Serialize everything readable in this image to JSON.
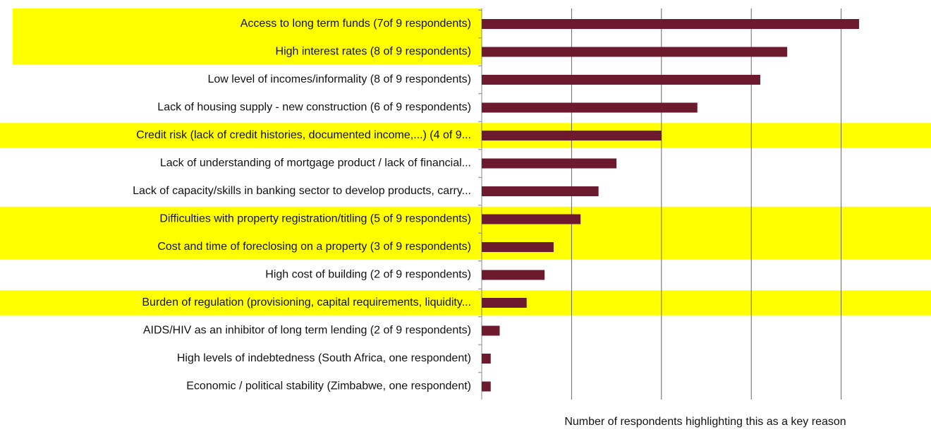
{
  "chart_data": {
    "type": "barh",
    "categories": [
      "Access to long term funds (7of 9 respondents)",
      "High interest rates (8 of 9 respondents)",
      "Low level of incomes/informality (8 of 9 respondents)",
      "Lack of housing supply - new  construction (6 of 9 respondents)",
      "Credit risk (lack of credit histories, documented income,...) (4 of 9...",
      "Lack of understanding of mortgage product / lack of financial...",
      "Lack of capacity/skills in banking sector to develop products, carry...",
      "Difficulties with property registration/titling (5 of 9 respondents)",
      "Cost and time of foreclosing on a property (3 of 9 respondents)",
      "High cost of building (2 of 9 respondents)",
      "Burden of regulation (provisioning, capital requirements, liquidity...",
      "AIDS/HIV as an inhibitor of long term lending (2 of 9 respondents)",
      "High levels of indebtedness (South Africa, one respondent)",
      "Economic / political stability (Zimbabwe, one respondent)"
    ],
    "values": [
      4.2,
      3.4,
      3.1,
      2.4,
      2.0,
      1.5,
      1.3,
      1.1,
      0.8,
      0.7,
      0.5,
      0.2,
      0.1,
      0.1
    ],
    "color": "#6d1a2e",
    "highlighted": [
      0,
      1,
      4,
      7,
      8,
      10
    ],
    "highlight_color": "#ffff00",
    "xlabel": "Number of respondents highlighting this as a key reason",
    "xlim": [
      0,
      5
    ],
    "xticks": [
      0,
      1,
      2,
      3,
      4
    ],
    "grid": true
  }
}
